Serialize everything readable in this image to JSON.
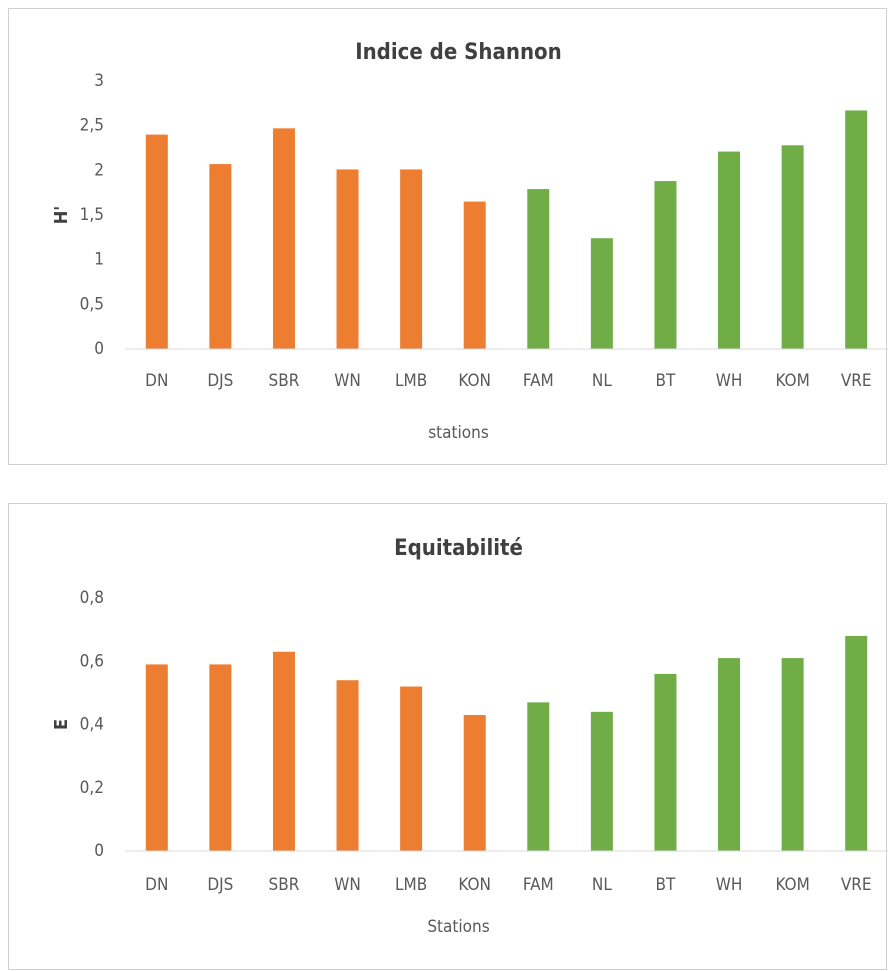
{
  "chart_data": [
    {
      "type": "bar",
      "title": "Indice de Shannon",
      "x_label": "stations",
      "y_label": "H'",
      "categories": [
        "DN",
        "DJS",
        "SBR",
        "WN",
        "LMB",
        "KON",
        "FAM",
        "NL",
        "BT",
        "WH",
        "KOM",
        "VRE"
      ],
      "values": [
        2.4,
        2.07,
        2.47,
        2.01,
        2.01,
        1.65,
        1.79,
        1.24,
        1.88,
        2.21,
        2.28,
        2.67
      ],
      "colors": [
        "#ed7d31",
        "#ed7d31",
        "#ed7d31",
        "#ed7d31",
        "#ed7d31",
        "#ed7d31",
        "#70ad47",
        "#70ad47",
        "#70ad47",
        "#70ad47",
        "#70ad47",
        "#70ad47"
      ],
      "ylim": [
        0,
        3
      ],
      "yticks": [
        0,
        {
          "value": 0.5,
          "label": "0,5"
        },
        1,
        {
          "value": 1.5,
          "label": "1,5"
        },
        2,
        {
          "value": 2.5,
          "label": "2,5"
        },
        3
      ],
      "grid": false
    },
    {
      "type": "bar",
      "title": "Equitabilité",
      "x_label": "Stations",
      "y_label": "E",
      "categories": [
        "DN",
        "DJS",
        "SBR",
        "WN",
        "LMB",
        "KON",
        "FAM",
        "NL",
        "BT",
        "WH",
        "KOM",
        "VRE"
      ],
      "values": [
        0.59,
        0.59,
        0.63,
        0.54,
        0.52,
        0.43,
        0.47,
        0.44,
        0.56,
        0.61,
        0.61,
        0.68
      ],
      "colors": [
        "#ed7d31",
        "#ed7d31",
        "#ed7d31",
        "#ed7d31",
        "#ed7d31",
        "#ed7d31",
        "#70ad47",
        "#70ad47",
        "#70ad47",
        "#70ad47",
        "#70ad47",
        "#70ad47"
      ],
      "ylim": [
        0,
        0.8
      ],
      "yticks": [
        0,
        {
          "value": 0.2,
          "label": "0,2"
        },
        {
          "value": 0.4,
          "label": "0,4"
        },
        {
          "value": 0.6,
          "label": "0,6"
        },
        {
          "value": 0.8,
          "label": "0,8"
        }
      ],
      "grid": false
    }
  ]
}
